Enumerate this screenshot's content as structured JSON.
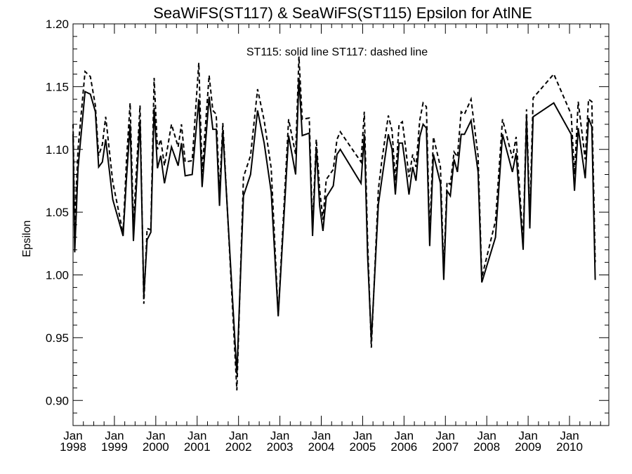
{
  "chart_data": {
    "type": "line",
    "title": "SeaWiFS(ST117) & SeaWiFS(ST115)  Epsilon for AtlNE",
    "ylabel": "Epsilon",
    "xlabel": "",
    "annotation": "ST115: solid line   ST117: dashed line",
    "xlim": [
      1998.0,
      2010.95
    ],
    "ylim": [
      0.88,
      1.2
    ],
    "yticks": [
      0.9,
      0.95,
      1.0,
      1.05,
      1.1,
      1.15,
      1.2
    ],
    "ytick_labels": [
      "0.90",
      "0.95",
      "1.00",
      "1.05",
      "1.10",
      "1.15",
      "1.20"
    ],
    "xticks": [
      1998,
      1999,
      2000,
      2001,
      2002,
      2003,
      2004,
      2005,
      2006,
      2007,
      2008,
      2009,
      2010
    ],
    "xtick_month": "Jan",
    "xtick_years": [
      "1998",
      "1999",
      "2000",
      "2001",
      "2002",
      "2003",
      "2004",
      "2005",
      "2006",
      "2007",
      "2008",
      "2009",
      "2010"
    ],
    "series": [
      {
        "name": "ST115",
        "style": "solid",
        "color": "#000000",
        "points": [
          [
            1998.0,
            1.112
          ],
          [
            1998.04,
            1.018
          ],
          [
            1998.12,
            1.085
          ],
          [
            1998.29,
            1.146
          ],
          [
            1998.42,
            1.144
          ],
          [
            1998.54,
            1.13
          ],
          [
            1998.62,
            1.086
          ],
          [
            1998.71,
            1.09
          ],
          [
            1998.79,
            1.108
          ],
          [
            1998.96,
            1.06
          ],
          [
            1999.21,
            1.031
          ],
          [
            1999.29,
            1.076
          ],
          [
            1999.38,
            1.12
          ],
          [
            1999.46,
            1.027
          ],
          [
            1999.62,
            1.123
          ],
          [
            1999.71,
            0.983
          ],
          [
            1999.79,
            1.028
          ],
          [
            1999.88,
            1.034
          ],
          [
            1999.96,
            1.133
          ],
          [
            2000.04,
            1.085
          ],
          [
            2000.12,
            1.095
          ],
          [
            2000.21,
            1.073
          ],
          [
            2000.38,
            1.102
          ],
          [
            2000.54,
            1.087
          ],
          [
            2000.62,
            1.105
          ],
          [
            2000.71,
            1.079
          ],
          [
            2000.88,
            1.08
          ],
          [
            2001.04,
            1.14
          ],
          [
            2001.12,
            1.07
          ],
          [
            2001.29,
            1.142
          ],
          [
            2001.38,
            1.116
          ],
          [
            2001.46,
            1.116
          ],
          [
            2001.54,
            1.055
          ],
          [
            2001.62,
            1.115
          ],
          [
            2001.96,
            0.921
          ],
          [
            2002.12,
            1.063
          ],
          [
            2002.29,
            1.08
          ],
          [
            2002.46,
            1.131
          ],
          [
            2002.62,
            1.105
          ],
          [
            2002.79,
            1.066
          ],
          [
            2002.96,
            0.967
          ],
          [
            2003.21,
            1.111
          ],
          [
            2003.38,
            1.08
          ],
          [
            2003.46,
            1.157
          ],
          [
            2003.54,
            1.111
          ],
          [
            2003.71,
            1.113
          ],
          [
            2003.79,
            1.031
          ],
          [
            2003.88,
            1.102
          ],
          [
            2003.96,
            1.055
          ],
          [
            2004.04,
            1.035
          ],
          [
            2004.12,
            1.062
          ],
          [
            2004.29,
            1.071
          ],
          [
            2004.38,
            1.096
          ],
          [
            2004.46,
            1.1
          ],
          [
            2004.96,
            1.073
          ],
          [
            2005.04,
            1.112
          ],
          [
            2005.12,
            1.015
          ],
          [
            2005.21,
            0.948
          ],
          [
            2005.38,
            1.056
          ],
          [
            2005.46,
            1.075
          ],
          [
            2005.62,
            1.112
          ],
          [
            2005.71,
            1.1
          ],
          [
            2005.79,
            1.064
          ],
          [
            2005.88,
            1.105
          ],
          [
            2005.96,
            1.105
          ],
          [
            2006.04,
            1.086
          ],
          [
            2006.12,
            1.064
          ],
          [
            2006.21,
            1.086
          ],
          [
            2006.29,
            1.075
          ],
          [
            2006.38,
            1.11
          ],
          [
            2006.46,
            1.12
          ],
          [
            2006.54,
            1.117
          ],
          [
            2006.62,
            1.023
          ],
          [
            2006.71,
            1.096
          ],
          [
            2006.88,
            1.073
          ],
          [
            2006.96,
            0.996
          ],
          [
            2007.04,
            1.067
          ],
          [
            2007.12,
            1.063
          ],
          [
            2007.21,
            1.092
          ],
          [
            2007.29,
            1.082
          ],
          [
            2007.38,
            1.112
          ],
          [
            2007.46,
            1.112
          ],
          [
            2007.62,
            1.123
          ],
          [
            2007.79,
            1.082
          ],
          [
            2007.88,
            0.994
          ],
          [
            2008.21,
            1.03
          ],
          [
            2008.38,
            1.112
          ],
          [
            2008.62,
            1.082
          ],
          [
            2008.71,
            1.097
          ],
          [
            2008.88,
            1.02
          ],
          [
            2008.96,
            1.125
          ],
          [
            2009.04,
            1.037
          ],
          [
            2009.12,
            1.126
          ],
          [
            2009.62,
            1.137
          ],
          [
            2010.04,
            1.112
          ],
          [
            2010.12,
            1.067
          ],
          [
            2010.21,
            1.117
          ],
          [
            2010.38,
            1.077
          ],
          [
            2010.46,
            1.125
          ],
          [
            2010.54,
            1.118
          ],
          [
            2010.62,
            0.996
          ]
        ]
      },
      {
        "name": "ST117",
        "style": "dashed",
        "color": "#000000",
        "points": [
          [
            1998.0,
            1.12
          ],
          [
            1998.04,
            1.04
          ],
          [
            1998.12,
            1.1
          ],
          [
            1998.29,
            1.162
          ],
          [
            1998.42,
            1.158
          ],
          [
            1998.54,
            1.135
          ],
          [
            1998.62,
            1.095
          ],
          [
            1998.71,
            1.104
          ],
          [
            1998.79,
            1.126
          ],
          [
            1998.96,
            1.074
          ],
          [
            1999.21,
            1.033
          ],
          [
            1999.29,
            1.09
          ],
          [
            1999.38,
            1.137
          ],
          [
            1999.46,
            1.04
          ],
          [
            1999.62,
            1.135
          ],
          [
            1999.71,
            0.977
          ],
          [
            1999.79,
            1.037
          ],
          [
            1999.88,
            1.036
          ],
          [
            1999.96,
            1.157
          ],
          [
            2000.04,
            1.1
          ],
          [
            2000.12,
            1.108
          ],
          [
            2000.21,
            1.087
          ],
          [
            2000.38,
            1.12
          ],
          [
            2000.54,
            1.102
          ],
          [
            2000.62,
            1.12
          ],
          [
            2000.71,
            1.09
          ],
          [
            2000.88,
            1.091
          ],
          [
            2001.04,
            1.169
          ],
          [
            2001.12,
            1.082
          ],
          [
            2001.29,
            1.159
          ],
          [
            2001.38,
            1.131
          ],
          [
            2001.46,
            1.128
          ],
          [
            2001.54,
            1.065
          ],
          [
            2001.62,
            1.121
          ],
          [
            2001.96,
            0.908
          ],
          [
            2002.12,
            1.078
          ],
          [
            2002.29,
            1.095
          ],
          [
            2002.46,
            1.148
          ],
          [
            2002.62,
            1.123
          ],
          [
            2002.79,
            1.085
          ],
          [
            2002.96,
            0.968
          ],
          [
            2003.21,
            1.124
          ],
          [
            2003.38,
            1.096
          ],
          [
            2003.46,
            1.174
          ],
          [
            2003.54,
            1.124
          ],
          [
            2003.71,
            1.125
          ],
          [
            2003.79,
            1.038
          ],
          [
            2003.88,
            1.108
          ],
          [
            2003.96,
            1.068
          ],
          [
            2004.04,
            1.044
          ],
          [
            2004.12,
            1.076
          ],
          [
            2004.29,
            1.084
          ],
          [
            2004.38,
            1.108
          ],
          [
            2004.46,
            1.114
          ],
          [
            2004.96,
            1.09
          ],
          [
            2005.04,
            1.13
          ],
          [
            2005.12,
            1.027
          ],
          [
            2005.21,
            0.942
          ],
          [
            2005.38,
            1.068
          ],
          [
            2005.46,
            1.09
          ],
          [
            2005.62,
            1.127
          ],
          [
            2005.71,
            1.115
          ],
          [
            2005.79,
            1.075
          ],
          [
            2005.88,
            1.12
          ],
          [
            2005.96,
            1.122
          ],
          [
            2006.04,
            1.101
          ],
          [
            2006.12,
            1.078
          ],
          [
            2006.21,
            1.096
          ],
          [
            2006.29,
            1.086
          ],
          [
            2006.38,
            1.123
          ],
          [
            2006.46,
            1.137
          ],
          [
            2006.54,
            1.134
          ],
          [
            2006.62,
            1.031
          ],
          [
            2006.71,
            1.11
          ],
          [
            2006.88,
            1.086
          ],
          [
            2006.96,
            1.003
          ],
          [
            2007.04,
            1.074
          ],
          [
            2007.12,
            1.072
          ],
          [
            2007.21,
            1.098
          ],
          [
            2007.29,
            1.094
          ],
          [
            2007.38,
            1.13
          ],
          [
            2007.46,
            1.128
          ],
          [
            2007.62,
            1.14
          ],
          [
            2007.79,
            1.095
          ],
          [
            2007.88,
            0.998
          ],
          [
            2008.21,
            1.043
          ],
          [
            2008.38,
            1.124
          ],
          [
            2008.62,
            1.093
          ],
          [
            2008.71,
            1.11
          ],
          [
            2008.88,
            1.026
          ],
          [
            2008.96,
            1.132
          ],
          [
            2009.04,
            1.047
          ],
          [
            2009.12,
            1.141
          ],
          [
            2009.62,
            1.16
          ],
          [
            2010.04,
            1.128
          ],
          [
            2010.12,
            1.08
          ],
          [
            2010.21,
            1.138
          ],
          [
            2010.38,
            1.092
          ],
          [
            2010.46,
            1.14
          ],
          [
            2010.54,
            1.138
          ],
          [
            2010.62,
            1.01
          ]
        ]
      }
    ]
  }
}
